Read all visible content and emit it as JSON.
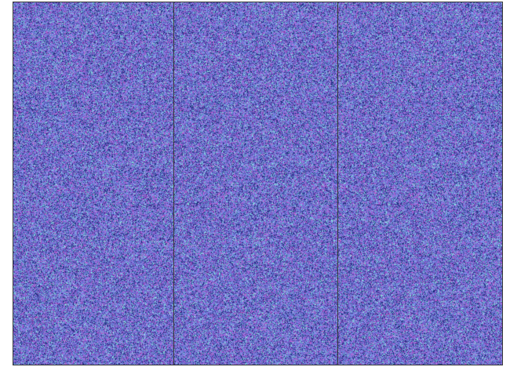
{
  "image": {
    "description_kind": "random-dot autostereogram",
    "panel_count": 3,
    "colors": {
      "background": "#ffffff",
      "border": "#3a3a3a",
      "dominant_blue": "#6f7fd9",
      "accent_magenta": "#b35ac8",
      "accent_cyan": "#7fd3d6",
      "accent_navy": "#2e3a8c",
      "accent_violet": "#8a5fd1"
    }
  }
}
